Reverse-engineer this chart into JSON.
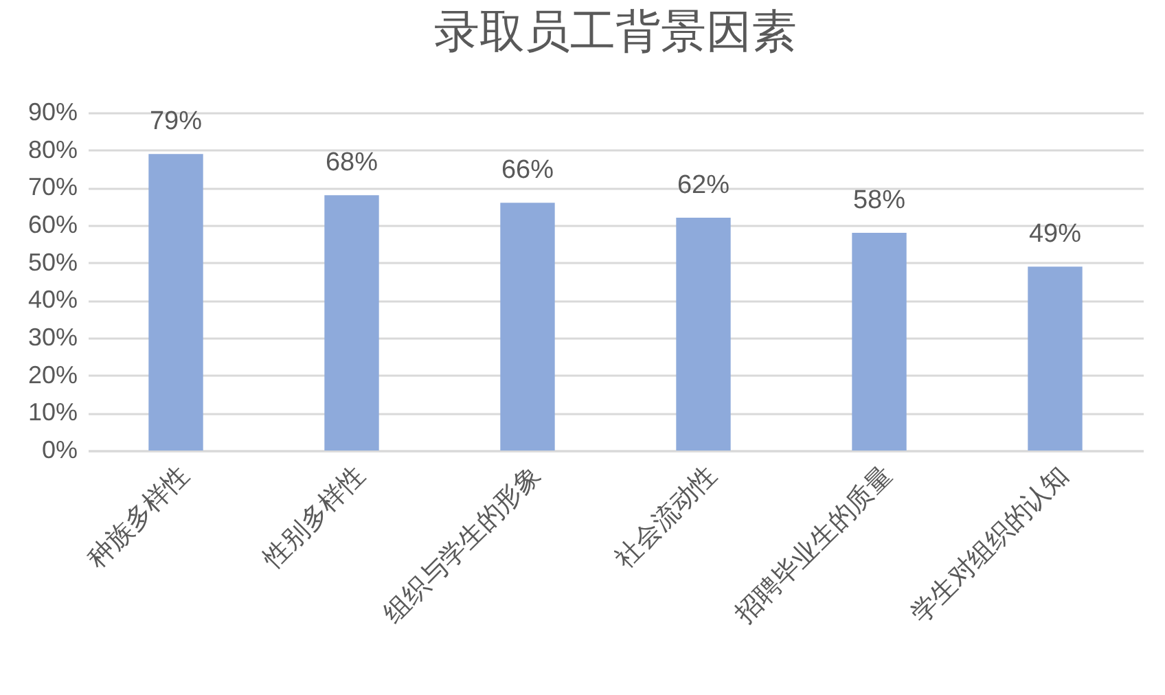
{
  "chart_data": {
    "type": "bar",
    "title": "录取员工背景因素",
    "categories": [
      "种族多样性",
      "性别多样性",
      "组织与学生的形象",
      "社会流动性",
      "招聘毕业生的质量",
      "学生对组织的认知"
    ],
    "values": [
      79,
      68,
      66,
      62,
      58,
      49
    ],
    "color": "#8eaadb",
    "value_labels": [
      "79%",
      "68%",
      "66%",
      "62%",
      "58%",
      "49%"
    ],
    "ylim": [
      0,
      90
    ],
    "yticks": [
      {
        "value": 0,
        "label": "0%"
      },
      {
        "value": 10,
        "label": "10%"
      },
      {
        "value": 20,
        "label": "20%"
      },
      {
        "value": 30,
        "label": "30%"
      },
      {
        "value": 40,
        "label": "40%"
      },
      {
        "value": 50,
        "label": "50%"
      },
      {
        "value": 60,
        "label": "60%"
      },
      {
        "value": 70,
        "label": "70%"
      },
      {
        "value": 80,
        "label": "80%"
      },
      {
        "value": 90,
        "label": "90%"
      }
    ],
    "grid": "y"
  }
}
